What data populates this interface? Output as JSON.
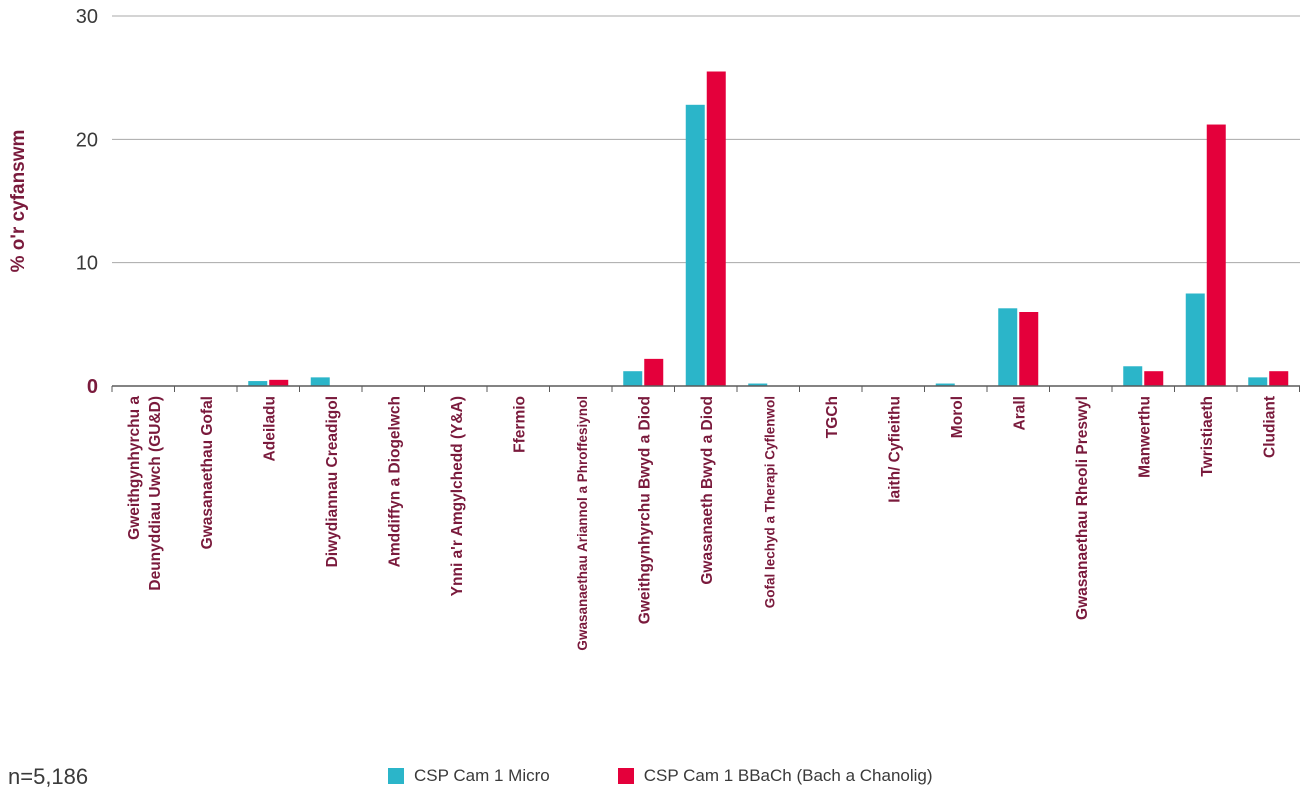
{
  "chart_data": {
    "type": "bar",
    "ylabel": "% o'r cyfanswm",
    "ylim": [
      0,
      30
    ],
    "yticks": [
      "0",
      "10",
      "20",
      "30"
    ],
    "grid": true,
    "legend_position": "bottom",
    "categories": [
      [
        "Gweithgynhyrchu a",
        "Deunyddiau Uwch (GU&D)"
      ],
      [
        "Gwasanaethau Gofal"
      ],
      [
        "Adeiladu"
      ],
      [
        "Diwydiannau Creadigol"
      ],
      [
        "Amddiffyn a Diogelwch"
      ],
      [
        "Ynni a'r Amgylchedd (Y&A)"
      ],
      [
        "Ffermio"
      ],
      [
        "Gwasanaethau Ariannol a Phroffesiynol"
      ],
      [
        "Gweithgynhyrchu Bwyd a Diod"
      ],
      [
        "Gwasanaeth Bwyd a Diod"
      ],
      [
        "Gofal Iechyd a Therapi Cyflenwol"
      ],
      [
        "TGCh"
      ],
      [
        "Iaith/ Cyfieithu"
      ],
      [
        "Morol"
      ],
      [
        "Arall"
      ],
      [
        "Gwasanaethau Rheoli Preswyl"
      ],
      [
        "Manwerthu"
      ],
      [
        "Twristiaeth"
      ],
      [
        "Cludiant"
      ]
    ],
    "series": [
      {
        "name": "CSP Cam 1 Micro",
        "color": "#2bb5c9",
        "values": [
          0,
          0,
          0.4,
          0.7,
          0,
          0,
          0,
          0,
          1.2,
          22.8,
          0.2,
          0,
          0,
          0.2,
          6.3,
          0,
          1.6,
          7.5,
          0.7
        ]
      },
      {
        "name": "CSP Cam 1 BBaCh (Bach a Chanolig)",
        "color": "#e4003b",
        "values": [
          0,
          0,
          0.5,
          0,
          0,
          0,
          0,
          0,
          2.2,
          25.5,
          0,
          0,
          0,
          0,
          6.0,
          0,
          1.2,
          21.2,
          1.2
        ]
      }
    ]
  },
  "footnote": "n=5,186",
  "colors": {
    "text": "#7a1a3c",
    "grid": "#a8a8a8",
    "axis": "#5a5a5a"
  }
}
